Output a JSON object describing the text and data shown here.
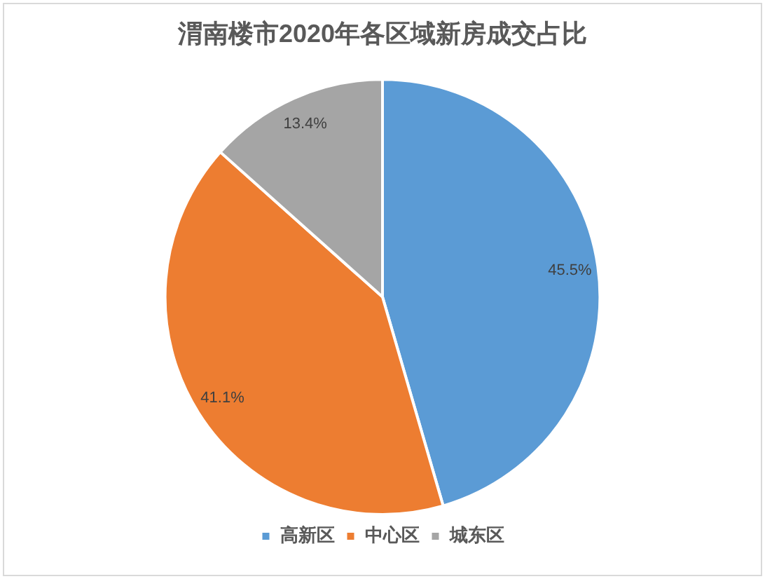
{
  "chart_data": {
    "type": "pie",
    "title": "渭南楼市2020年各区域新房成交占比",
    "categories": [
      "高新区",
      "中心区",
      "城东区"
    ],
    "values": [
      45.5,
      41.1,
      13.4
    ],
    "value_labels": [
      "45.5%",
      "41.1%",
      "13.4%"
    ],
    "colors": [
      "#5b9bd5",
      "#ed7d31",
      "#a5a5a5"
    ],
    "legend": "bottom"
  }
}
